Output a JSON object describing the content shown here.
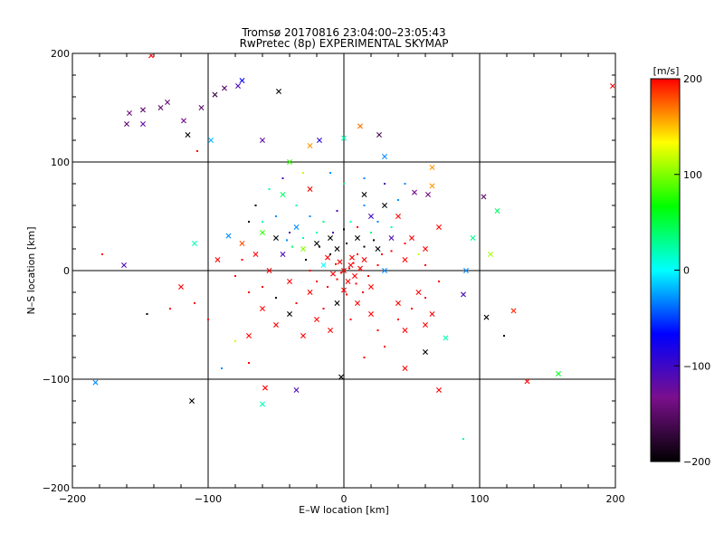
{
  "chart_data": {
    "type": "scatter",
    "title": "Tromsø 20170816 23:04:00–23:05:43",
    "subtitle": "RwPretec (8p) EXPERIMENTAL SKYMAP",
    "xlabel": "E–W location [km]",
    "ylabel": "N–S location [km]",
    "xlim": [
      -200,
      200
    ],
    "ylim": [
      -200,
      200
    ],
    "xticks": [
      "−200",
      "−100",
      "0",
      "100",
      "200"
    ],
    "yticks": [
      "200",
      "100",
      "0",
      "−100",
      "−200"
    ],
    "grid": true,
    "colorbar": {
      "label": "[m/s]",
      "range": [
        -200,
        200
      ],
      "ticks": [
        "200",
        "100",
        "0",
        "−100",
        "−200"
      ],
      "stops": [
        "#000000",
        "#7a0f8c",
        "#0000ff",
        "#00ffff",
        "#00ff00",
        "#ffff00",
        "#ff0000"
      ]
    },
    "markers": {
      "x": "cross",
      "dot": "small dot"
    },
    "points": [
      {
        "x": -158,
        "y": 145,
        "v": -140,
        "m": "x"
      },
      {
        "x": -148,
        "y": 148,
        "v": -150,
        "m": "x"
      },
      {
        "x": -135,
        "y": 150,
        "v": -150,
        "m": "x"
      },
      {
        "x": -130,
        "y": 155,
        "v": -145,
        "m": "x"
      },
      {
        "x": -118,
        "y": 138,
        "v": -130,
        "m": "x"
      },
      {
        "x": -105,
        "y": 150,
        "v": -150,
        "m": "x"
      },
      {
        "x": -95,
        "y": 162,
        "v": -170,
        "m": "x"
      },
      {
        "x": -88,
        "y": 168,
        "v": -150,
        "m": "x"
      },
      {
        "x": -78,
        "y": 170,
        "v": -110,
        "m": "x"
      },
      {
        "x": -75,
        "y": 175,
        "v": -70,
        "m": "x"
      },
      {
        "x": -48,
        "y": 165,
        "v": -200,
        "m": "x"
      },
      {
        "x": -98,
        "y": 120,
        "v": -20,
        "m": "x"
      },
      {
        "x": -115,
        "y": 125,
        "v": -200,
        "m": "x"
      },
      {
        "x": -142,
        "y": 198,
        "v": 200,
        "m": "x"
      },
      {
        "x": 198,
        "y": 170,
        "v": 200,
        "m": "x"
      },
      {
        "x": 12,
        "y": 133,
        "v": 170,
        "m": "x"
      },
      {
        "x": -18,
        "y": 120,
        "v": -90,
        "m": "x"
      },
      {
        "x": 26,
        "y": 125,
        "v": -160,
        "m": "x"
      },
      {
        "x": 0,
        "y": 122,
        "v": 20,
        "m": "x"
      },
      {
        "x": -25,
        "y": 115,
        "v": 160,
        "m": "x"
      },
      {
        "x": -60,
        "y": 120,
        "v": -120,
        "m": "x"
      },
      {
        "x": -148,
        "y": 135,
        "v": -120,
        "m": "x"
      },
      {
        "x": -160,
        "y": 135,
        "v": -150,
        "m": "x"
      },
      {
        "x": -108,
        "y": 110,
        "v": 200,
        "m": "dot"
      },
      {
        "x": 65,
        "y": 95,
        "v": 160,
        "m": "x"
      },
      {
        "x": 65,
        "y": 78,
        "v": 160,
        "m": "x"
      },
      {
        "x": 52,
        "y": 72,
        "v": -130,
        "m": "x"
      },
      {
        "x": 62,
        "y": 70,
        "v": -140,
        "m": "x"
      },
      {
        "x": 103,
        "y": 68,
        "v": -150,
        "m": "x"
      },
      {
        "x": 113,
        "y": 55,
        "v": 40,
        "m": "x"
      },
      {
        "x": 95,
        "y": 30,
        "v": 30,
        "m": "x"
      },
      {
        "x": 108,
        "y": 15,
        "v": 110,
        "m": "x"
      },
      {
        "x": 90,
        "y": 0,
        "v": -30,
        "m": "x"
      },
      {
        "x": 88,
        "y": -22,
        "v": -110,
        "m": "x"
      },
      {
        "x": 105,
        "y": -43,
        "v": -200,
        "m": "x"
      },
      {
        "x": 125,
        "y": -37,
        "v": 190,
        "m": "x"
      },
      {
        "x": 118,
        "y": -60,
        "v": -200,
        "m": "dot"
      },
      {
        "x": 158,
        "y": -95,
        "v": 60,
        "m": "x"
      },
      {
        "x": 135,
        "y": -102,
        "v": 200,
        "m": "x"
      },
      {
        "x": 75,
        "y": -62,
        "v": 20,
        "m": "x"
      },
      {
        "x": 60,
        "y": -75,
        "v": -200,
        "m": "x"
      },
      {
        "x": 45,
        "y": -90,
        "v": 200,
        "m": "x"
      },
      {
        "x": 70,
        "y": -110,
        "v": 200,
        "m": "x"
      },
      {
        "x": 88,
        "y": -155,
        "v": 20,
        "m": "dot"
      },
      {
        "x": -112,
        "y": -120,
        "v": -200,
        "m": "x"
      },
      {
        "x": -60,
        "y": -123,
        "v": 20,
        "m": "x"
      },
      {
        "x": -58,
        "y": -108,
        "v": 200,
        "m": "x"
      },
      {
        "x": -35,
        "y": -110,
        "v": -110,
        "m": "x"
      },
      {
        "x": -2,
        "y": -98,
        "v": -200,
        "m": "x"
      },
      {
        "x": -183,
        "y": -103,
        "v": -30,
        "m": "x"
      },
      {
        "x": -162,
        "y": 5,
        "v": -110,
        "m": "x"
      },
      {
        "x": -120,
        "y": -15,
        "v": 200,
        "m": "x"
      },
      {
        "x": -110,
        "y": 25,
        "v": 20,
        "m": "x"
      },
      {
        "x": -85,
        "y": 32,
        "v": -30,
        "m": "x"
      },
      {
        "x": -93,
        "y": 10,
        "v": 200,
        "m": "x"
      },
      {
        "x": -75,
        "y": 25,
        "v": 180,
        "m": "x"
      },
      {
        "x": -60,
        "y": 35,
        "v": 80,
        "m": "x"
      },
      {
        "x": -60,
        "y": -35,
        "v": 200,
        "m": "x"
      },
      {
        "x": -50,
        "y": -50,
        "v": 200,
        "m": "x"
      },
      {
        "x": -70,
        "y": -60,
        "v": 200,
        "m": "x"
      },
      {
        "x": -40,
        "y": -40,
        "v": -200,
        "m": "x"
      },
      {
        "x": -30,
        "y": -60,
        "v": 200,
        "m": "x"
      },
      {
        "x": -20,
        "y": -45,
        "v": 200,
        "m": "x"
      },
      {
        "x": -10,
        "y": -55,
        "v": 200,
        "m": "x"
      },
      {
        "x": 20,
        "y": -40,
        "v": 200,
        "m": "x"
      },
      {
        "x": 40,
        "y": -30,
        "v": 200,
        "m": "x"
      },
      {
        "x": 55,
        "y": -20,
        "v": 200,
        "m": "x"
      },
      {
        "x": 65,
        "y": -40,
        "v": 200,
        "m": "x"
      },
      {
        "x": 60,
        "y": -50,
        "v": 200,
        "m": "x"
      },
      {
        "x": 45,
        "y": -55,
        "v": 200,
        "m": "x"
      },
      {
        "x": 30,
        "y": -70,
        "v": 200,
        "m": "dot"
      },
      {
        "x": 15,
        "y": -80,
        "v": 200,
        "m": "dot"
      },
      {
        "x": -100,
        "y": -45,
        "v": 200,
        "m": "dot"
      },
      {
        "x": -110,
        "y": -30,
        "v": 200,
        "m": "dot"
      },
      {
        "x": -145,
        "y": -40,
        "v": -200,
        "m": "dot"
      },
      {
        "x": -178,
        "y": 15,
        "v": 200,
        "m": "dot"
      },
      {
        "x": -128,
        "y": -35,
        "v": 200,
        "m": "dot"
      },
      {
        "x": -80,
        "y": -65,
        "v": 120,
        "m": "dot"
      },
      {
        "x": -90,
        "y": -90,
        "v": -30,
        "m": "dot"
      },
      {
        "x": -70,
        "y": -85,
        "v": 200,
        "m": "dot"
      },
      {
        "x": 30,
        "y": 105,
        "v": -30,
        "m": "x"
      },
      {
        "x": -40,
        "y": 100,
        "v": 80,
        "m": "x"
      },
      {
        "x": -25,
        "y": 75,
        "v": 200,
        "m": "x"
      },
      {
        "x": -45,
        "y": 70,
        "v": 40,
        "m": "x"
      },
      {
        "x": 15,
        "y": 70,
        "v": -200,
        "m": "x"
      },
      {
        "x": 30,
        "y": 60,
        "v": -200,
        "m": "x"
      },
      {
        "x": 20,
        "y": 50,
        "v": -100,
        "m": "x"
      },
      {
        "x": 40,
        "y": 50,
        "v": 200,
        "m": "x"
      },
      {
        "x": 50,
        "y": 30,
        "v": 200,
        "m": "x"
      },
      {
        "x": 60,
        "y": 20,
        "v": 200,
        "m": "x"
      },
      {
        "x": 70,
        "y": 40,
        "v": 200,
        "m": "x"
      },
      {
        "x": 25,
        "y": 20,
        "v": -200,
        "m": "x"
      },
      {
        "x": 10,
        "y": 30,
        "v": -200,
        "m": "x"
      },
      {
        "x": -10,
        "y": 30,
        "v": -200,
        "m": "x"
      },
      {
        "x": -20,
        "y": 25,
        "v": -200,
        "m": "x"
      },
      {
        "x": -5,
        "y": 20,
        "v": -200,
        "m": "x"
      },
      {
        "x": -30,
        "y": 20,
        "v": 100,
        "m": "x"
      },
      {
        "x": -45,
        "y": 15,
        "v": -110,
        "m": "x"
      },
      {
        "x": -55,
        "y": 0,
        "v": 200,
        "m": "x"
      },
      {
        "x": -40,
        "y": -10,
        "v": 200,
        "m": "x"
      },
      {
        "x": -25,
        "y": -20,
        "v": 200,
        "m": "x"
      },
      {
        "x": -15,
        "y": 5,
        "v": 0,
        "m": "x"
      },
      {
        "x": -35,
        "y": 40,
        "v": -30,
        "m": "x"
      },
      {
        "x": -50,
        "y": 30,
        "v": -200,
        "m": "x"
      },
      {
        "x": -65,
        "y": 15,
        "v": 200,
        "m": "x"
      },
      {
        "x": 35,
        "y": 30,
        "v": -110,
        "m": "x"
      },
      {
        "x": 45,
        "y": 10,
        "v": 200,
        "m": "x"
      },
      {
        "x": 30,
        "y": 0,
        "v": -30,
        "m": "x"
      },
      {
        "x": 20,
        "y": -15,
        "v": 200,
        "m": "x"
      },
      {
        "x": 10,
        "y": -30,
        "v": 200,
        "m": "x"
      },
      {
        "x": -5,
        "y": -30,
        "v": -200,
        "m": "x"
      },
      {
        "x": 5,
        "y": 5,
        "v": 200,
        "m": "x"
      },
      {
        "x": 0,
        "y": 0,
        "v": 200,
        "m": "x"
      },
      {
        "x": 8,
        "y": -5,
        "v": 200,
        "m": "x"
      },
      {
        "x": -3,
        "y": 8,
        "v": 200,
        "m": "x"
      },
      {
        "x": 3,
        "y": -10,
        "v": 200,
        "m": "x"
      },
      {
        "x": 12,
        "y": 2,
        "v": 200,
        "m": "x"
      },
      {
        "x": -8,
        "y": -3,
        "v": 200,
        "m": "x"
      },
      {
        "x": 6,
        "y": 12,
        "v": 200,
        "m": "x"
      },
      {
        "x": -12,
        "y": 12,
        "v": 200,
        "m": "x"
      },
      {
        "x": 15,
        "y": 10,
        "v": 200,
        "m": "x"
      },
      {
        "x": 0,
        "y": -18,
        "v": 200,
        "m": "x"
      },
      {
        "x": 20,
        "y": 35,
        "v": 40,
        "m": "dot"
      },
      {
        "x": -15,
        "y": 45,
        "v": 40,
        "m": "dot"
      },
      {
        "x": -25,
        "y": 50,
        "v": -30,
        "m": "dot"
      },
      {
        "x": -5,
        "y": 55,
        "v": -110,
        "m": "dot"
      },
      {
        "x": 5,
        "y": 45,
        "v": 20,
        "m": "dot"
      },
      {
        "x": 15,
        "y": 60,
        "v": -30,
        "m": "dot"
      },
      {
        "x": -35,
        "y": 60,
        "v": 20,
        "m": "dot"
      },
      {
        "x": -50,
        "y": 50,
        "v": -30,
        "m": "dot"
      },
      {
        "x": -60,
        "y": 45,
        "v": 20,
        "m": "dot"
      },
      {
        "x": -40,
        "y": 35,
        "v": -110,
        "m": "dot"
      },
      {
        "x": -20,
        "y": 35,
        "v": 20,
        "m": "dot"
      },
      {
        "x": 0,
        "y": 38,
        "v": -200,
        "m": "dot"
      },
      {
        "x": 10,
        "y": 40,
        "v": 200,
        "m": "dot"
      },
      {
        "x": 25,
        "y": 45,
        "v": -30,
        "m": "dot"
      },
      {
        "x": 35,
        "y": 40,
        "v": 20,
        "m": "dot"
      },
      {
        "x": 40,
        "y": 65,
        "v": -30,
        "m": "dot"
      },
      {
        "x": 45,
        "y": 80,
        "v": -30,
        "m": "dot"
      },
      {
        "x": 30,
        "y": 80,
        "v": -110,
        "m": "dot"
      },
      {
        "x": 15,
        "y": 85,
        "v": -30,
        "m": "dot"
      },
      {
        "x": 0,
        "y": 80,
        "v": 40,
        "m": "dot"
      },
      {
        "x": -10,
        "y": 90,
        "v": -30,
        "m": "dot"
      },
      {
        "x": -30,
        "y": 90,
        "v": 120,
        "m": "dot"
      },
      {
        "x": -45,
        "y": 85,
        "v": -110,
        "m": "dot"
      },
      {
        "x": -55,
        "y": 75,
        "v": 20,
        "m": "dot"
      },
      {
        "x": -65,
        "y": 60,
        "v": -200,
        "m": "dot"
      },
      {
        "x": -70,
        "y": 45,
        "v": -200,
        "m": "dot"
      },
      {
        "x": -75,
        "y": 10,
        "v": 200,
        "m": "dot"
      },
      {
        "x": -80,
        "y": -5,
        "v": 200,
        "m": "dot"
      },
      {
        "x": -70,
        "y": -20,
        "v": 200,
        "m": "dot"
      },
      {
        "x": -60,
        "y": -15,
        "v": 200,
        "m": "dot"
      },
      {
        "x": -50,
        "y": -25,
        "v": -200,
        "m": "dot"
      },
      {
        "x": -35,
        "y": -30,
        "v": 200,
        "m": "dot"
      },
      {
        "x": -15,
        "y": -35,
        "v": 200,
        "m": "dot"
      },
      {
        "x": 5,
        "y": -45,
        "v": 200,
        "m": "dot"
      },
      {
        "x": 25,
        "y": -55,
        "v": 200,
        "m": "dot"
      },
      {
        "x": 40,
        "y": -45,
        "v": 200,
        "m": "dot"
      },
      {
        "x": 50,
        "y": -35,
        "v": 200,
        "m": "dot"
      },
      {
        "x": 60,
        "y": -25,
        "v": 200,
        "m": "dot"
      },
      {
        "x": 70,
        "y": -10,
        "v": 200,
        "m": "dot"
      },
      {
        "x": 60,
        "y": 5,
        "v": 200,
        "m": "dot"
      },
      {
        "x": 55,
        "y": 15,
        "v": 120,
        "m": "dot"
      },
      {
        "x": 45,
        "y": 25,
        "v": 200,
        "m": "dot"
      },
      {
        "x": -28,
        "y": 10,
        "v": -200,
        "m": "dot"
      },
      {
        "x": -10,
        "y": 15,
        "v": -200,
        "m": "dot"
      },
      {
        "x": -18,
        "y": 22,
        "v": -200,
        "m": "dot"
      },
      {
        "x": 2,
        "y": 25,
        "v": -200,
        "m": "dot"
      },
      {
        "x": 15,
        "y": 22,
        "v": -200,
        "m": "dot"
      },
      {
        "x": 22,
        "y": 28,
        "v": -200,
        "m": "dot"
      },
      {
        "x": -8,
        "y": 35,
        "v": -110,
        "m": "dot"
      },
      {
        "x": -38,
        "y": 22,
        "v": 40,
        "m": "dot"
      },
      {
        "x": -42,
        "y": 28,
        "v": -30,
        "m": "dot"
      },
      {
        "x": -30,
        "y": 30,
        "v": 20,
        "m": "dot"
      },
      {
        "x": 28,
        "y": 15,
        "v": 200,
        "m": "dot"
      },
      {
        "x": 35,
        "y": 18,
        "v": 200,
        "m": "dot"
      },
      {
        "x": 18,
        "y": -5,
        "v": 200,
        "m": "dot"
      },
      {
        "x": -5,
        "y": -8,
        "v": 200,
        "m": "dot"
      },
      {
        "x": 2,
        "y": -22,
        "v": 200,
        "m": "dot"
      },
      {
        "x": -20,
        "y": -10,
        "v": 200,
        "m": "dot"
      },
      {
        "x": 10,
        "y": 15,
        "v": 200,
        "m": "dot"
      },
      {
        "x": 4,
        "y": 2,
        "v": 200,
        "m": "dot"
      },
      {
        "x": -2,
        "y": -2,
        "v": 200,
        "m": "dot"
      },
      {
        "x": 7,
        "y": 7,
        "v": 200,
        "m": "dot"
      },
      {
        "x": -6,
        "y": 6,
        "v": 200,
        "m": "dot"
      },
      {
        "x": 9,
        "y": -12,
        "v": 200,
        "m": "dot"
      },
      {
        "x": -12,
        "y": -15,
        "v": 200,
        "m": "dot"
      },
      {
        "x": 14,
        "y": -20,
        "v": 200,
        "m": "dot"
      },
      {
        "x": -25,
        "y": 0,
        "v": 200,
        "m": "dot"
      },
      {
        "x": 25,
        "y": 5,
        "v": 200,
        "m": "dot"
      }
    ]
  }
}
